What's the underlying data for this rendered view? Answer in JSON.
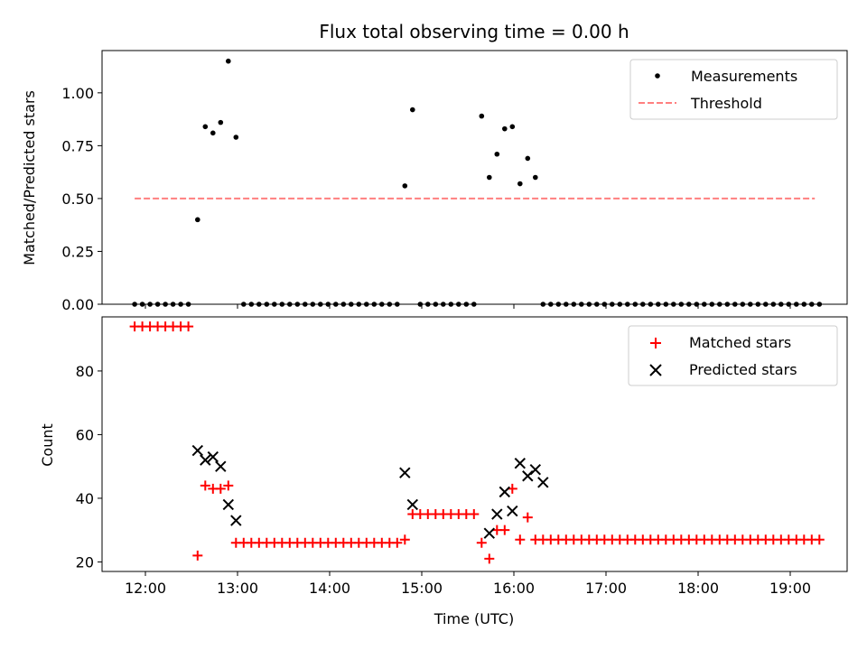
{
  "chart_data": [
    {
      "type": "scatter",
      "title": "Flux total observing time = 0.00 h",
      "xlabel": "",
      "ylabel": "Matched/Predicted stars",
      "ylim": [
        0.0,
        1.2
      ],
      "yticks": [
        "0.00",
        "0.25",
        "0.50",
        "0.75",
        "1.00"
      ],
      "xticks": [
        "12:00",
        "13:00",
        "14:00",
        "15:00",
        "16:00",
        "17:00",
        "18:00",
        "19:00"
      ],
      "legend_position": "top-right",
      "series": [
        {
          "name": "Measurements",
          "color": "#000000",
          "marker": "dot",
          "x": [
            "11:53",
            "11:58",
            "12:03",
            "12:08",
            "12:13",
            "12:18",
            "12:23",
            "12:28",
            "12:34",
            "12:39",
            "12:44",
            "12:49",
            "12:54",
            "12:59",
            "13:04",
            "13:09",
            "13:14",
            "13:19",
            "13:24",
            "13:29",
            "13:34",
            "13:39",
            "13:44",
            "13:49",
            "13:54",
            "13:59",
            "14:04",
            "14:09",
            "14:14",
            "14:19",
            "14:24",
            "14:29",
            "14:34",
            "14:39",
            "14:44",
            "14:49",
            "14:54",
            "14:59",
            "15:04",
            "15:09",
            "15:14",
            "15:19",
            "15:24",
            "15:29",
            "15:34",
            "15:39",
            "15:44",
            "15:49",
            "15:54",
            "15:59",
            "16:04",
            "16:09",
            "16:14",
            "16:19",
            "16:24",
            "16:29",
            "16:34",
            "16:39",
            "16:44",
            "16:49",
            "16:54",
            "16:59",
            "17:04",
            "17:09",
            "17:14",
            "17:19",
            "17:24",
            "17:29",
            "17:34",
            "17:39",
            "17:44",
            "17:49",
            "17:54",
            "17:59",
            "18:04",
            "18:09",
            "18:14",
            "18:19",
            "18:24",
            "18:29",
            "18:34",
            "18:39",
            "18:44",
            "18:49",
            "18:54",
            "18:59",
            "19:04",
            "19:09",
            "19:14",
            "19:19"
          ],
          "y": [
            0,
            0,
            0,
            0,
            0,
            0,
            0,
            0,
            0.4,
            0.84,
            0.81,
            0.86,
            1.15,
            0.79,
            0,
            0,
            0,
            0,
            0,
            0,
            0,
            0,
            0,
            0,
            0,
            0,
            0,
            0,
            0,
            0,
            0,
            0,
            0,
            0,
            0,
            0.56,
            0.92,
            0,
            0,
            0,
            0,
            0,
            0,
            0,
            0,
            0.89,
            0.6,
            0.71,
            0.83,
            0.84,
            0.57,
            0.69,
            0.6,
            0,
            0,
            0,
            0,
            0,
            0,
            0,
            0,
            0,
            0,
            0,
            0,
            0,
            0,
            0,
            0,
            0,
            0,
            0,
            0,
            0,
            0,
            0,
            0,
            0,
            0,
            0,
            0,
            0,
            0,
            0,
            0,
            0,
            0,
            0,
            0,
            0
          ]
        },
        {
          "name": "Threshold",
          "color": "#ff7f7f",
          "style": "dashed",
          "x": [
            "11:53",
            "19:16"
          ],
          "y": [
            0.5,
            0.5
          ]
        }
      ]
    },
    {
      "type": "scatter",
      "title": "",
      "xlabel": "Time (UTC)",
      "ylabel": "Count",
      "ylim": [
        17,
        97
      ],
      "yticks": [
        "20",
        "40",
        "60",
        "80"
      ],
      "xticks": [
        "12:00",
        "13:00",
        "14:00",
        "15:00",
        "16:00",
        "17:00",
        "18:00",
        "19:00"
      ],
      "legend_position": "top-right",
      "series": [
        {
          "name": "Matched stars",
          "color": "#ff0000",
          "marker": "plus",
          "x": [
            "11:53",
            "11:58",
            "12:03",
            "12:08",
            "12:13",
            "12:18",
            "12:23",
            "12:28",
            "12:34",
            "12:39",
            "12:44",
            "12:49",
            "12:54",
            "12:59",
            "13:04",
            "13:09",
            "13:14",
            "13:19",
            "13:24",
            "13:29",
            "13:34",
            "13:39",
            "13:44",
            "13:49",
            "13:54",
            "13:59",
            "14:04",
            "14:09",
            "14:14",
            "14:19",
            "14:24",
            "14:29",
            "14:34",
            "14:39",
            "14:44",
            "14:49",
            "14:54",
            "14:59",
            "15:04",
            "15:09",
            "15:14",
            "15:19",
            "15:24",
            "15:29",
            "15:34",
            "15:39",
            "15:44",
            "15:49",
            "15:54",
            "15:59",
            "16:04",
            "16:09",
            "16:14",
            "16:19",
            "16:24",
            "16:29",
            "16:34",
            "16:39",
            "16:44",
            "16:49",
            "16:54",
            "16:59",
            "17:04",
            "17:09",
            "17:14",
            "17:19",
            "17:24",
            "17:29",
            "17:34",
            "17:39",
            "17:44",
            "17:49",
            "17:54",
            "17:59",
            "18:04",
            "18:09",
            "18:14",
            "18:19",
            "18:24",
            "18:29",
            "18:34",
            "18:39",
            "18:44",
            "18:49",
            "18:54",
            "18:59",
            "19:04",
            "19:09",
            "19:14",
            "19:19"
          ],
          "y": [
            94,
            94,
            94,
            94,
            94,
            94,
            94,
            94,
            22,
            44,
            43,
            43,
            44,
            26,
            26,
            26,
            26,
            26,
            26,
            26,
            26,
            26,
            26,
            26,
            26,
            26,
            26,
            26,
            26,
            26,
            26,
            26,
            26,
            26,
            26,
            27,
            35,
            35,
            35,
            35,
            35,
            35,
            35,
            35,
            35,
            26,
            21,
            30,
            30,
            43,
            27,
            34,
            27,
            27,
            27,
            27,
            27,
            27,
            27,
            27,
            27,
            27,
            27,
            27,
            27,
            27,
            27,
            27,
            27,
            27,
            27,
            27,
            27,
            27,
            27,
            27,
            27,
            27,
            27,
            27,
            27,
            27,
            27,
            27,
            27,
            27,
            27,
            27,
            27,
            27
          ]
        },
        {
          "name": "Predicted stars",
          "color": "#000000",
          "marker": "x",
          "x": [
            "12:34",
            "12:39",
            "12:44",
            "12:49",
            "12:54",
            "12:59",
            "14:49",
            "14:54",
            "15:44",
            "15:49",
            "15:54",
            "15:59",
            "16:04",
            "16:09",
            "16:14",
            "16:19"
          ],
          "y": [
            55,
            52,
            53,
            50,
            38,
            33,
            48,
            38,
            29,
            35,
            42,
            36,
            51,
            47,
            49,
            45
          ]
        }
      ]
    }
  ]
}
